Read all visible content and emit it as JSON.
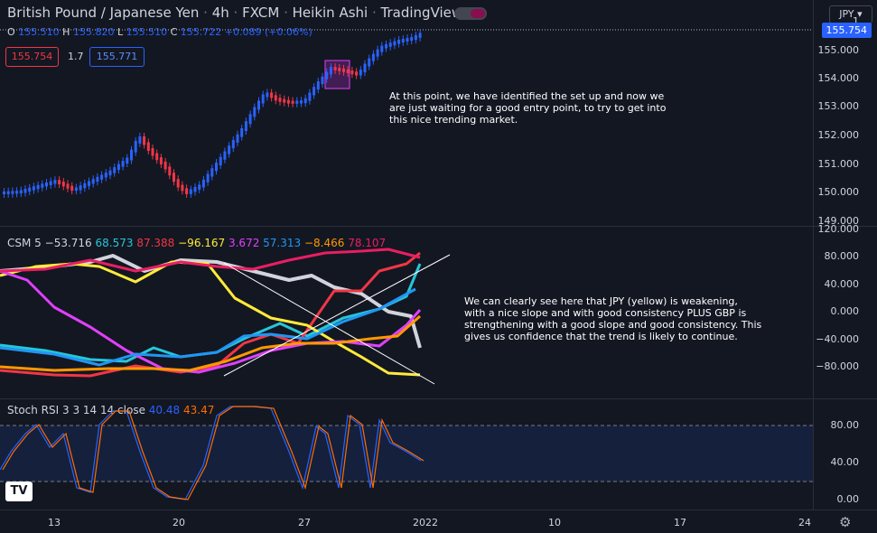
{
  "header": {
    "symbol": "British Pound / Japanese Yen",
    "interval": "4h",
    "exchange": "FXCM",
    "chart_style": "Heikin Ashi",
    "source": "TradingView"
  },
  "ohlc": {
    "o_label": "O",
    "o": "155.510",
    "h_label": "H",
    "h": "155.820",
    "l_label": "L",
    "l": "155.510",
    "c_label": "C",
    "c": "155.722",
    "change": "+0.089 (+0.06%)"
  },
  "trade": {
    "sell": "155.754",
    "spread": "1.7",
    "buy": "155.771"
  },
  "currency_button": "JPY",
  "price_axis": {
    "labels": [
      "155.000",
      "154.000",
      "153.000",
      "152.000",
      "151.000",
      "150.000",
      "149.000"
    ],
    "top_partial": "1",
    "current_price": "155.754"
  },
  "csm": {
    "title": "CSM 5",
    "values": [
      {
        "text": "−53.716",
        "color": "#d1d4dc"
      },
      {
        "text": "68.573",
        "color": "#26c6da"
      },
      {
        "text": "87.388",
        "color": "#f23645"
      },
      {
        "text": "−96.167",
        "color": "#ffeb3b"
      },
      {
        "text": "3.672",
        "color": "#e040fb"
      },
      {
        "text": "57.313",
        "color": "#2196f3"
      },
      {
        "text": "−8.466",
        "color": "#ff9800"
      },
      {
        "text": "78.107",
        "color": "#e91e63"
      }
    ],
    "axis_labels": [
      "120.000",
      "80.000",
      "40.000",
      "0.000",
      "−40.000",
      "−80.000"
    ]
  },
  "stoch": {
    "title": "Stoch RSI 3 3 14 14 close",
    "k": "40.48",
    "d": "43.47",
    "k_color": "#2962ff",
    "d_color": "#ff6d00",
    "axis_labels": [
      "80.00",
      "40.00",
      "0.00"
    ]
  },
  "time_axis": [
    "13",
    "20",
    "27",
    "2022",
    "10",
    "17",
    "24"
  ],
  "annotations": {
    "price": "At this point, we have identified the set up and now we\nare just waiting for a good entry point, to try to get into\nthis nice trending market.",
    "csm": "We can clearly see here that JPY (yellow) is weakening,\nwith a nice slope and with good consistency PLUS GBP is\nstrengthening with a good slope and good consistency. This\ngives us confidence that the trend is likely to continue."
  },
  "logo": "TV",
  "colors": {
    "bull": "#2962ff",
    "bear": "#f23645",
    "background": "#131722",
    "grid": "#2a2e39"
  }
}
